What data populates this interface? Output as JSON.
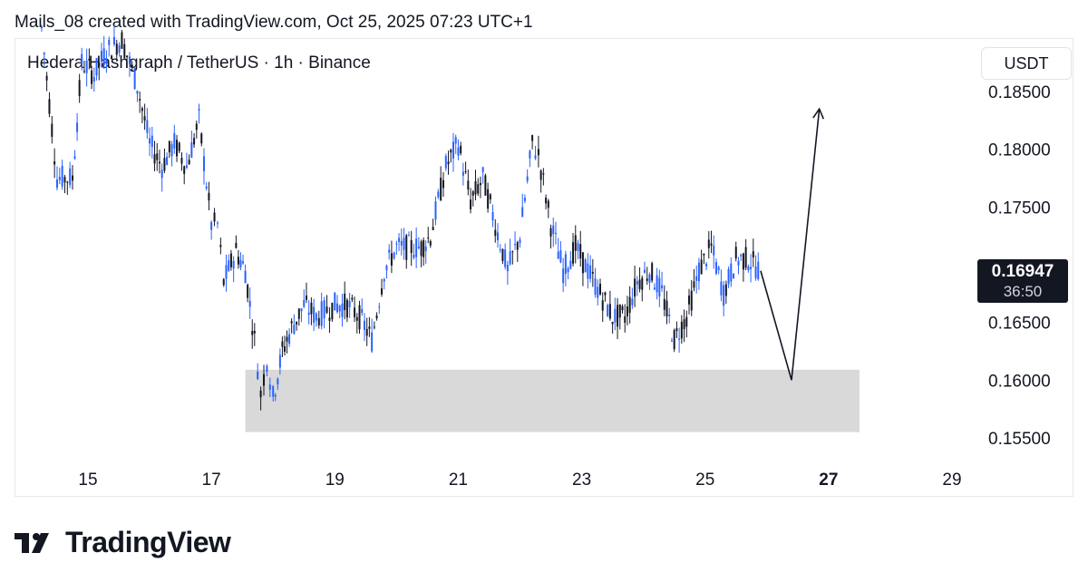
{
  "header": {
    "attribution": "Mails_08 created with TradingView.com, Oct 25, 2025 07:23 UTC+1"
  },
  "symbol": {
    "title": "Hedera Hashgraph / TetherUS · 1h · Binance"
  },
  "currency": "USDT",
  "last_price": {
    "value": "0.16947",
    "countdown": "36:50"
  },
  "brand": {
    "name": "TradingView"
  },
  "colors": {
    "up": "#2962ff",
    "down": "#131722",
    "zone": "#d9d9d9",
    "projection": "#131722"
  },
  "chart_data": {
    "type": "line",
    "title": "Hedera Hashgraph / TetherUS · 1h · Binance",
    "xlabel": "",
    "ylabel": "USDT",
    "x_ticks": [
      "15",
      "17",
      "19",
      "21",
      "23",
      "25",
      "27",
      "29"
    ],
    "x_tick_values": [
      15,
      17,
      19,
      21,
      23,
      25,
      27,
      29
    ],
    "y_ticks": [
      "0.18500",
      "0.18000",
      "0.17500",
      "0.16500",
      "0.16000",
      "0.15500"
    ],
    "y_tick_values": [
      0.185,
      0.18,
      0.175,
      0.165,
      0.16,
      0.155
    ],
    "ylim": [
      0.1525,
      0.1885
    ],
    "xlim": [
      14.2,
      30.0
    ],
    "series": [
      {
        "style": "candlestick-approx",
        "points": [
          [
            14.25,
            0.1905
          ],
          [
            14.5,
            0.1775
          ],
          [
            14.75,
            0.1775
          ],
          [
            14.9,
            0.1875
          ],
          [
            15.1,
            0.1865
          ],
          [
            15.3,
            0.1885
          ],
          [
            15.55,
            0.1895
          ],
          [
            15.8,
            0.1855
          ],
          [
            16.0,
            0.1805
          ],
          [
            16.2,
            0.1785
          ],
          [
            16.4,
            0.1805
          ],
          [
            16.6,
            0.1785
          ],
          [
            16.8,
            0.1825
          ],
          [
            17.0,
            0.1735
          ],
          [
            17.1,
            0.1735
          ],
          [
            17.2,
            0.1685
          ],
          [
            17.4,
            0.1712
          ],
          [
            17.55,
            0.1695
          ],
          [
            17.7,
            0.1635
          ],
          [
            17.8,
            0.1588
          ],
          [
            17.9,
            0.1618
          ],
          [
            18.0,
            0.1585
          ],
          [
            18.15,
            0.1625
          ],
          [
            18.3,
            0.1645
          ],
          [
            18.5,
            0.1665
          ],
          [
            18.7,
            0.1655
          ],
          [
            19.0,
            0.1665
          ],
          [
            19.2,
            0.1665
          ],
          [
            19.4,
            0.1655
          ],
          [
            19.6,
            0.1635
          ],
          [
            19.8,
            0.1695
          ],
          [
            20.0,
            0.1715
          ],
          [
            20.2,
            0.1715
          ],
          [
            20.4,
            0.1715
          ],
          [
            20.55,
            0.1725
          ],
          [
            20.8,
            0.1785
          ],
          [
            21.0,
            0.1805
          ],
          [
            21.2,
            0.1755
          ],
          [
            21.4,
            0.1775
          ],
          [
            21.6,
            0.1735
          ],
          [
            21.8,
            0.1695
          ],
          [
            22.0,
            0.1725
          ],
          [
            22.2,
            0.1805
          ],
          [
            22.3,
            0.1795
          ],
          [
            22.5,
            0.1735
          ],
          [
            22.7,
            0.1695
          ],
          [
            22.9,
            0.1715
          ],
          [
            23.1,
            0.1695
          ],
          [
            23.3,
            0.1675
          ],
          [
            23.5,
            0.1655
          ],
          [
            23.7,
            0.1655
          ],
          [
            23.9,
            0.1685
          ],
          [
            24.1,
            0.1695
          ],
          [
            24.3,
            0.1675
          ],
          [
            24.5,
            0.1635
          ],
          [
            24.7,
            0.1655
          ],
          [
            24.9,
            0.1695
          ],
          [
            25.1,
            0.1715
          ],
          [
            25.3,
            0.1675
          ],
          [
            25.5,
            0.1705
          ],
          [
            25.7,
            0.1705
          ],
          [
            25.9,
            0.16947
          ]
        ]
      },
      {
        "style": "projection-arrow",
        "points": [
          [
            25.9,
            0.16947
          ],
          [
            26.4,
            0.16
          ],
          [
            26.85,
            0.1835
          ]
        ]
      }
    ],
    "zones": [
      {
        "x0": 17.55,
        "x1": 27.5,
        "y0": 0.1555,
        "y1": 0.1609
      }
    ],
    "grid": false,
    "legend": "none"
  }
}
